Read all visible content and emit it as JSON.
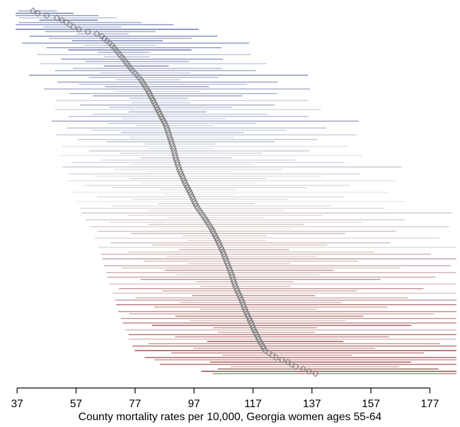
{
  "chart_data": {
    "type": "scatter",
    "variant": "caterpillar-plot-with-intervals",
    "title": "",
    "xlabel": "County mortality rates per 10,000, Georgia women ages 55-64",
    "ylabel": "",
    "xlim": [
      37,
      177
    ],
    "x_ticks": [
      37,
      57,
      77,
      97,
      117,
      137,
      157,
      177
    ],
    "n_rows": 159,
    "rows_sorted_by": "estimate ascending, one row per county",
    "legend": "none",
    "grid": "off",
    "marker": "open-diamond",
    "estimates": [
      42.4,
      44,
      47,
      50.5,
      52.2,
      53.7,
      54.9,
      56.1,
      58,
      61,
      64,
      65.8,
      66.6,
      67.5,
      68.4,
      69.2,
      69.9,
      70.5,
      71.2,
      71.8,
      72.5,
      73.1,
      73.7,
      74.3,
      74.9,
      75.5,
      76.2,
      76.9,
      77.6,
      78.3,
      79,
      79.5,
      80,
      80.5,
      81,
      81.5,
      81.9,
      82.3,
      82.7,
      83.1,
      83.5,
      83.9,
      84.3,
      84.7,
      85.1,
      85.5,
      85.9,
      86.3,
      86.7,
      87.1,
      87.5,
      87.8,
      88,
      88.3,
      88.5,
      88.8,
      89,
      89.3,
      89.5,
      89.8,
      90,
      90.2,
      90.4,
      90.6,
      90.8,
      91,
      91.3,
      91.5,
      91.8,
      92,
      92.3,
      92.6,
      93,
      93.3,
      93.7,
      94,
      94.4,
      94.8,
      95.2,
      95.6,
      96,
      96.4,
      96.7,
      97.1,
      97.4,
      97.8,
      98.3,
      98.9,
      99.4,
      100,
      100.5,
      101,
      101.5,
      102,
      102.5,
      103,
      103.4,
      103.8,
      104.2,
      104.6,
      105,
      105.4,
      105.7,
      106.1,
      106.4,
      106.8,
      107.1,
      107.4,
      107.7,
      108,
      108.3,
      108.6,
      108.9,
      109.2,
      109.5,
      109.8,
      110,
      110.3,
      110.5,
      110.8,
      111,
      111.4,
      111.7,
      112.1,
      112.4,
      112.8,
      113.1,
      113.4,
      113.7,
      114,
      114.3,
      114.6,
      115,
      115.3,
      115.7,
      116,
      116.4,
      116.7,
      117.1,
      117.4,
      117.8,
      118.2,
      118.6,
      118.9,
      119.3,
      119.8,
      120.3,
      120.7,
      121.2,
      122.4,
      123.6,
      124.8,
      126.8,
      128.8,
      130.2,
      131.5,
      134,
      136,
      138.2
    ],
    "interval_half_widths": [
      6,
      9,
      13,
      15,
      9,
      19,
      26,
      12,
      30,
      17,
      8,
      29,
      22,
      14,
      35,
      11,
      27,
      19,
      8,
      33,
      7,
      25,
      16,
      35,
      10,
      23,
      31,
      14,
      43,
      20,
      10,
      34,
      26,
      16,
      41,
      13,
      32,
      23,
      9,
      39,
      9,
      30,
      19,
      41,
      12,
      27,
      37,
      16,
      49,
      23,
      12,
      40,
      30,
      19,
      47,
      16,
      37,
      26,
      11,
      44,
      10,
      34,
      22,
      47,
      14,
      30,
      42,
      19,
      56,
      26,
      13,
      45,
      35,
      21,
      53,
      18,
      41,
      30,
      12,
      50,
      11,
      38,
      24,
      53,
      15,
      34,
      47,
      21,
      63,
      30,
      15,
      50,
      39,
      24,
      60,
      20,
      46,
      33,
      13,
      56,
      12,
      43,
      27,
      59,
      17,
      38,
      52,
      23,
      70,
      33,
      16,
      56,
      43,
      26,
      66,
      22,
      51,
      37,
      15,
      61,
      14,
      47,
      30,
      65,
      19,
      42,
      57,
      25,
      77,
      36,
      18,
      61,
      47,
      29,
      72,
      24,
      56,
      40,
      16,
      67,
      15,
      51,
      33,
      71,
      21,
      45,
      62,
      28,
      84,
      39,
      20,
      66,
      51,
      31,
      79,
      26,
      34,
      43,
      41
    ],
    "shade": [
      0.35,
      0.8,
      0.55,
      0.2,
      0.9,
      0.45,
      0.65,
      0.25,
      1,
      0.5,
      0.3,
      0.75,
      0.4,
      0.85,
      0.6,
      0.15,
      0.7,
      0.95,
      0.5,
      0.25,
      0.35,
      0.8,
      0.55,
      0.2,
      0.9,
      0.45,
      0.65,
      0.25,
      1,
      0.5,
      0.3,
      0.75,
      0.4,
      0.85,
      0.6,
      0.15,
      0.7,
      0.95,
      0.5,
      0.25,
      0.35,
      0.8,
      0.55,
      0.2,
      0.9,
      0.45,
      0.65,
      0.25,
      1,
      0.5,
      0.3,
      0.75,
      0.4,
      0.85,
      0.6,
      0.15,
      0.7,
      0.95,
      0.5,
      0.25,
      0.35,
      0.8,
      0.55,
      0.2,
      0.9,
      0.45,
      0.65,
      0.25,
      1,
      0.5,
      0.3,
      0.75,
      0.4,
      0.85,
      0.6,
      0.15,
      0.7,
      0.95,
      0.5,
      0.25,
      0.35,
      0.8,
      0.55,
      0.2,
      0.9,
      0.45,
      0.65,
      0.25,
      1,
      0.5,
      0.3,
      0.75,
      0.4,
      0.85,
      0.6,
      0.15,
      0.7,
      0.95,
      0.5,
      0.25,
      0.35,
      0.8,
      0.55,
      0.2,
      0.9,
      0.45,
      0.65,
      0.25,
      1,
      0.5,
      0.3,
      0.75,
      0.4,
      0.85,
      0.6,
      0.15,
      0.7,
      0.95,
      0.5,
      0.25,
      0.35,
      0.8,
      0.55,
      0.2,
      0.9,
      0.45,
      0.65,
      0.25,
      1,
      0.5,
      0.3,
      0.75,
      0.4,
      0.85,
      0.6,
      0.15,
      0.7,
      0.95,
      0.5,
      0.25,
      0.35,
      0.8,
      0.55,
      0.2,
      0.9,
      0.45,
      0.65,
      0.25,
      1,
      0.5,
      0.3,
      0.75,
      0.4,
      0.85,
      0.6,
      0.15,
      0.7,
      0.95,
      0.5
    ],
    "interval_lo_factor": 0.85,
    "interval_hi_factor": 1.35,
    "lo_extent_cap_start": 35,
    "lo_extent_cap_end": 45,
    "value_clamp": [
      36.5,
      186
    ],
    "colors": {
      "low": "#4a5fa0",
      "mid": "#d8d8d8",
      "high": "#8e2d26",
      "marker_stroke": "#828282",
      "axis": "#000000",
      "background": "#ffffff"
    }
  }
}
